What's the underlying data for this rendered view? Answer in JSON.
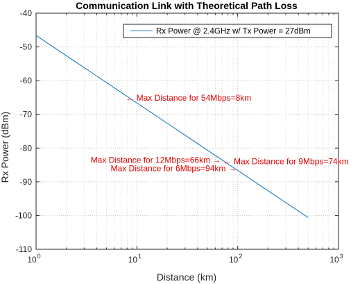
{
  "chart_data": {
    "type": "line",
    "title": "Communication Link with Theoretical Path Loss",
    "xlabel": "Distance (km)",
    "ylabel": "Rx Power (dBm)",
    "xscale": "log",
    "xlim": [
      1,
      1000
    ],
    "ylim": [
      -110,
      -40
    ],
    "xticks": [
      {
        "value": 1,
        "base": "10",
        "exp": "0"
      },
      {
        "value": 10,
        "base": "10",
        "exp": "1"
      },
      {
        "value": 100,
        "base": "10",
        "exp": "2"
      },
      {
        "value": 1000,
        "base": "10",
        "exp": "3"
      }
    ],
    "yticks": [
      -40,
      -50,
      -60,
      -70,
      -80,
      -90,
      -100,
      -110
    ],
    "grid": "on (dotted, including minor log lines)",
    "legend_position": "top-right",
    "series": [
      {
        "name": "Rx Power @ 2.4GHz w/ Tx Power = 27dBm",
        "color": "#0072BD",
        "x": [
          1,
          500
        ],
        "y": [
          -46.6,
          -100.6
        ]
      }
    ],
    "annotations": [
      {
        "text": "Max Distance for 54Mbps=8km",
        "x": 8,
        "y": -65.1,
        "arrow": "←",
        "side": "right"
      },
      {
        "text": "Max Distance for 12Mbps=66km",
        "x": 66,
        "y": -83.5,
        "arrow": "→",
        "side": "left"
      },
      {
        "text": "Max Distance for 9Mbps=74km",
        "x": 74,
        "y": -84.0,
        "arrow": "←",
        "side": "right"
      },
      {
        "text": "Max Distance for 6Mbps=94km",
        "x": 94,
        "y": -86.0,
        "arrow": "→",
        "side": "left"
      }
    ],
    "annotation_color": "#E00000"
  }
}
